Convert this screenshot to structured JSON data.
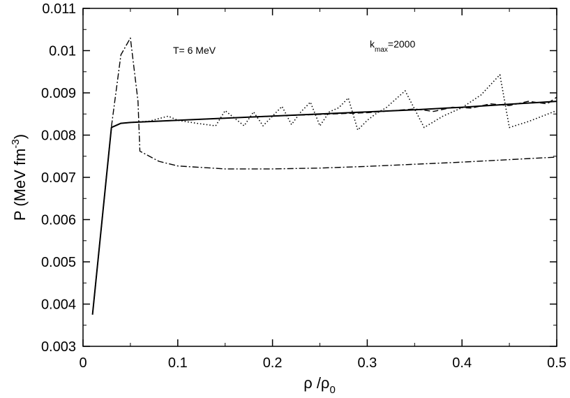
{
  "chart_data": {
    "type": "line",
    "title": "",
    "xlabel": {
      "base": "ρ /ρ",
      "sub": "0"
    },
    "ylabel": {
      "base": "P (MeV fm",
      "sup": "-3",
      "close": ")"
    },
    "xlim": [
      0,
      0.5
    ],
    "ylim": [
      0.003,
      0.011
    ],
    "xticks": [
      0,
      0.1,
      0.2,
      0.3,
      0.4,
      0.5
    ],
    "xtick_labels": [
      "0",
      "0.1",
      "0.2",
      "0.3",
      "0.4",
      "0.5"
    ],
    "yticks": [
      0.003,
      0.004,
      0.005,
      0.006,
      0.007,
      0.008,
      0.009,
      0.01,
      0.011
    ],
    "ytick_labels": [
      "0.003",
      "0.004",
      "0.005",
      "0.006",
      "0.007",
      "0.008",
      "0.009",
      "0.01",
      "0.011"
    ],
    "grid": false,
    "annotations": [
      {
        "id": "temperature",
        "text": "T= 6 MeV",
        "at": [
          0.1,
          0.0103
        ]
      },
      {
        "id": "kmax",
        "base": "k",
        "sub": "max",
        "rest": "=2000",
        "at": [
          0.3,
          0.0103
        ]
      }
    ],
    "series": [
      {
        "name": "solid",
        "style": "solid",
        "x": [
          0.01,
          0.03,
          0.04,
          0.05,
          0.1,
          0.15,
          0.2,
          0.25,
          0.3,
          0.35,
          0.4,
          0.45,
          0.5
        ],
        "y": [
          0.00375,
          0.00818,
          0.00828,
          0.0083,
          0.00835,
          0.0084,
          0.00845,
          0.0085,
          0.00855,
          0.0086,
          0.00866,
          0.00873,
          0.0088
        ]
      },
      {
        "name": "dashed",
        "style": "dashed",
        "x": [
          0.01,
          0.03,
          0.04,
          0.05,
          0.1,
          0.2,
          0.3,
          0.35,
          0.37,
          0.39,
          0.41,
          0.43,
          0.45,
          0.47,
          0.49,
          0.5
        ],
        "y": [
          0.00375,
          0.00818,
          0.00828,
          0.0083,
          0.00835,
          0.00845,
          0.00853,
          0.00862,
          0.00856,
          0.00866,
          0.00864,
          0.00874,
          0.0087,
          0.0088,
          0.00874,
          0.0089
        ]
      },
      {
        "name": "dotted",
        "style": "dotted",
        "x": [
          0.01,
          0.03,
          0.04,
          0.05,
          0.07,
          0.09,
          0.1,
          0.12,
          0.14,
          0.15,
          0.16,
          0.17,
          0.18,
          0.19,
          0.2,
          0.21,
          0.22,
          0.23,
          0.24,
          0.25,
          0.26,
          0.27,
          0.28,
          0.29,
          0.3,
          0.31,
          0.32,
          0.34,
          0.36,
          0.38,
          0.4,
          0.42,
          0.44,
          0.45,
          0.47,
          0.5
        ],
        "y": [
          0.00375,
          0.00818,
          0.00828,
          0.0083,
          0.00833,
          0.00845,
          0.00835,
          0.00828,
          0.00822,
          0.00858,
          0.0084,
          0.00822,
          0.00855,
          0.00822,
          0.00845,
          0.00868,
          0.00825,
          0.00855,
          0.00878,
          0.00822,
          0.00855,
          0.00865,
          0.00888,
          0.00812,
          0.00835,
          0.00852,
          0.00865,
          0.00905,
          0.00818,
          0.00845,
          0.00865,
          0.00895,
          0.00943,
          0.00818,
          0.00832,
          0.00858
        ]
      },
      {
        "name": "dash-dot",
        "style": "dashdot",
        "x": [
          0.03,
          0.04,
          0.045,
          0.05,
          0.058,
          0.06,
          0.08,
          0.1,
          0.15,
          0.2,
          0.25,
          0.3,
          0.35,
          0.4,
          0.45,
          0.5
        ],
        "y": [
          0.0082,
          0.0099,
          0.0101,
          0.0103,
          0.0088,
          0.00762,
          0.00738,
          0.00727,
          0.0072,
          0.0072,
          0.00722,
          0.00726,
          0.00731,
          0.00736,
          0.00742,
          0.00748
        ]
      }
    ]
  }
}
